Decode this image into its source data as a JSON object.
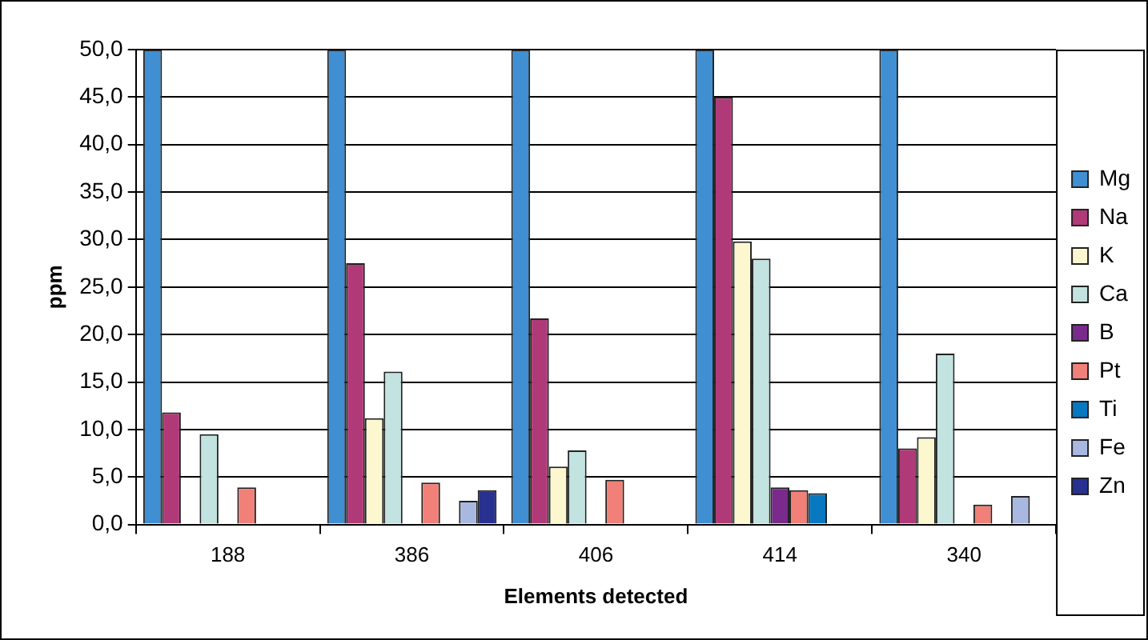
{
  "chart_data": {
    "type": "bar",
    "xlabel": "Elements detected",
    "ylabel": "ppm",
    "categories": [
      "188",
      "386",
      "406",
      "414",
      "340"
    ],
    "series": [
      {
        "name": "Mg",
        "color": "#3f8fd2",
        "values": [
          50,
          50,
          50,
          50,
          50
        ]
      },
      {
        "name": "Na",
        "color": "#b03a78",
        "values": [
          11.8,
          27.5,
          21.7,
          45.0,
          8.0
        ]
      },
      {
        "name": "K",
        "color": "#fdf7cf",
        "values": [
          null,
          11.2,
          6.1,
          29.8,
          9.2
        ]
      },
      {
        "name": "Ca",
        "color": "#c2e3e0",
        "values": [
          9.5,
          16.1,
          7.8,
          28.0,
          18.0
        ]
      },
      {
        "name": "B",
        "color": "#7a2a8c",
        "values": [
          null,
          null,
          null,
          3.9,
          null
        ]
      },
      {
        "name": "Pt",
        "color": "#f08078",
        "values": [
          3.9,
          4.4,
          4.7,
          3.6,
          2.1
        ]
      },
      {
        "name": "Ti",
        "color": "#0878c0",
        "values": [
          null,
          null,
          null,
          3.3,
          null
        ]
      },
      {
        "name": "Fe",
        "color": "#a8b8e0",
        "values": [
          null,
          2.5,
          null,
          null,
          3.0
        ]
      },
      {
        "name": "Zn",
        "color": "#283090",
        "values": [
          null,
          3.6,
          null,
          null,
          null
        ]
      }
    ],
    "ylim": [
      0,
      50
    ],
    "yticks": [
      {
        "value": 0,
        "label": "0,0"
      },
      {
        "value": 5,
        "label": "5,0"
      },
      {
        "value": 10,
        "label": "10,0"
      },
      {
        "value": 15,
        "label": "15,0"
      },
      {
        "value": 20,
        "label": "20,0"
      },
      {
        "value": 25,
        "label": "25,0"
      },
      {
        "value": 30,
        "label": "30,0"
      },
      {
        "value": 35,
        "label": "35,0"
      },
      {
        "value": 40,
        "label": "40,0"
      },
      {
        "value": 45,
        "label": "45,0"
      },
      {
        "value": 50,
        "label": "50,0"
      }
    ],
    "grid": "y",
    "legend": "right"
  }
}
